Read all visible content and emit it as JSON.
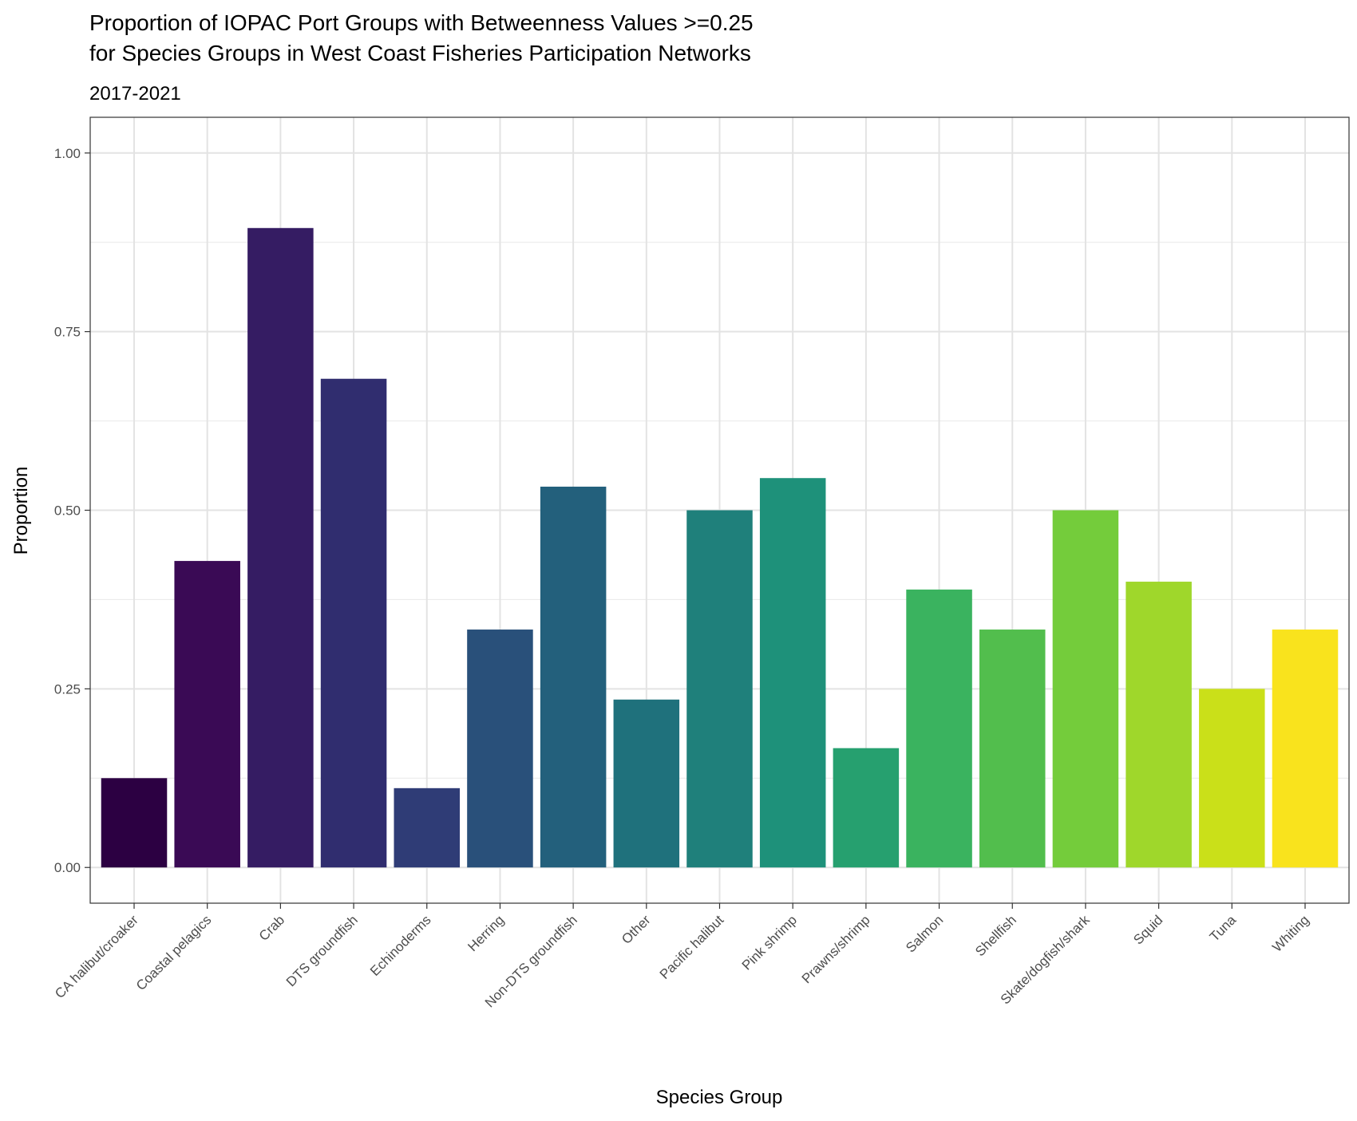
{
  "chart_data": {
    "type": "bar",
    "title": [
      "Proportion of IOPAC Port Groups with Betweenness Values >=0.25",
      "for Species Groups in West Coast Fisheries Participation Networks"
    ],
    "subtitle": "2017-2021",
    "xlabel": "Species Group",
    "ylabel": "Proportion",
    "ylim": [
      -0.05,
      1.05
    ],
    "yticks": [
      0.0,
      0.25,
      0.5,
      0.75,
      1.0
    ],
    "ytick_labels": [
      "0.00",
      "0.25",
      "0.50",
      "0.75",
      "1.00"
    ],
    "grid": true,
    "legend": "none",
    "categories": [
      "CA halibut/croaker",
      "Coastal pelagics",
      "Crab",
      "DTS groundfish",
      "Echinoderms",
      "Herring",
      "Non-DTS groundfish",
      "Other",
      "Pacific halibut",
      "Pink shrimp",
      "Prawns/shrimp",
      "Salmon",
      "Shellfish",
      "Skate/dogfish/shark",
      "Squid",
      "Tuna",
      "Whiting"
    ],
    "values": [
      0.125,
      0.429,
      0.895,
      0.684,
      0.111,
      0.333,
      0.533,
      0.235,
      0.5,
      0.545,
      0.167,
      0.389,
      0.333,
      0.5,
      0.4,
      0.25,
      0.333
    ],
    "colors": [
      "#2c0042",
      "#3a0a55",
      "#351c63",
      "#302d6f",
      "#2f3c76",
      "#29507a",
      "#23607c",
      "#1f717c",
      "#1f807b",
      "#1e917a",
      "#26a06f",
      "#3ab35f",
      "#52be4d",
      "#74cc3b",
      "#9fd72b",
      "#cae019",
      "#f9e31d"
    ]
  }
}
